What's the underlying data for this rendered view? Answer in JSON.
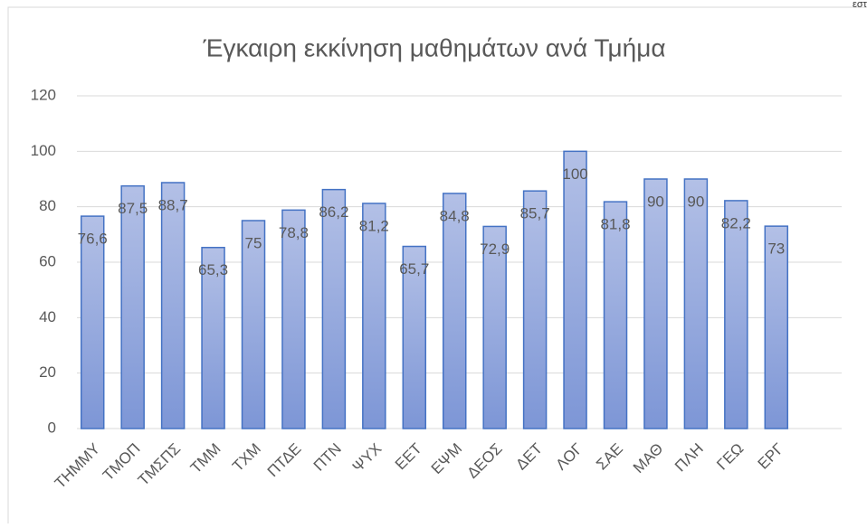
{
  "chart_data": {
    "type": "bar",
    "title": "Έγκαιρη εκκίνηση μαθημάτων ανά Τμήμα",
    "corner_text": "εστ",
    "categories": [
      "ΤΗΜΜΥ",
      "ΤΜΟΠ",
      "ΤΜΣΠΣ",
      "ΤΜΜ",
      "ΤΧΜ",
      "ΠΤΔΕ",
      "ΠΤΝ",
      "ΨΥΧ",
      "ΕΕΤ",
      "ΕΨΜ",
      "ΔΕΟΣ",
      "ΔΕΤ",
      "ΛΟΓ",
      "ΣΑΕ",
      "ΜΑΘ",
      "ΠΛΗ",
      "ΓΕΩ",
      "ΕΡΓ"
    ],
    "values": [
      76.6,
      87.5,
      88.7,
      65.3,
      75,
      78.8,
      86.2,
      81.2,
      65.7,
      84.8,
      72.9,
      85.7,
      100,
      81.8,
      90,
      90,
      82.2,
      73
    ],
    "value_labels": [
      "76,6",
      "87,5",
      "88,7",
      "65,3",
      "75",
      "78,8",
      "86,2",
      "81,2",
      "65,7",
      "84,8",
      "72,9",
      "85,7",
      "100",
      "81,8",
      "90",
      "90",
      "82,2",
      "73"
    ],
    "color": "#4472c4",
    "ylim": [
      0,
      120
    ],
    "yticks": [
      0,
      20,
      40,
      60,
      80,
      100,
      120
    ],
    "grid": true
  }
}
